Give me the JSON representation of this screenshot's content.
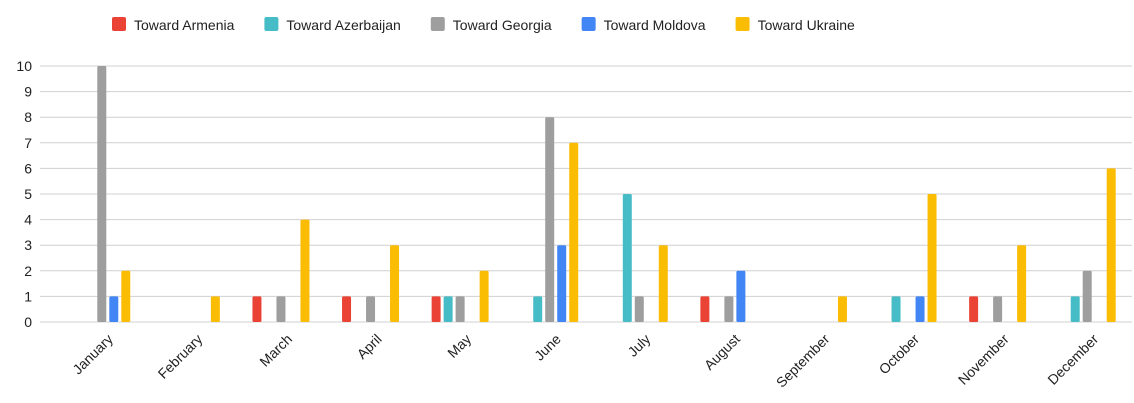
{
  "chart_data": {
    "type": "bar",
    "categories": [
      "January",
      "February",
      "March",
      "April",
      "May",
      "June",
      "July",
      "August",
      "September",
      "October",
      "November",
      "December"
    ],
    "series": [
      {
        "name": "Toward Armenia",
        "color": "#ea4335",
        "values": [
          0,
          0,
          1,
          1,
          1,
          0,
          0,
          1,
          0,
          0,
          1,
          0
        ]
      },
      {
        "name": "Toward Azerbaijan",
        "color": "#46bdc6",
        "values": [
          0,
          0,
          0,
          0,
          1,
          1,
          5,
          0,
          0,
          1,
          0,
          1
        ]
      },
      {
        "name": "Toward Georgia",
        "color": "#9e9e9e",
        "values": [
          10,
          0,
          1,
          1,
          1,
          8,
          1,
          1,
          0,
          0,
          1,
          2
        ]
      },
      {
        "name": "Toward Moldova",
        "color": "#4285f4",
        "values": [
          1,
          0,
          0,
          0,
          0,
          3,
          0,
          2,
          0,
          1,
          0,
          0
        ]
      },
      {
        "name": "Toward Ukraine",
        "color": "#fbbc04",
        "values": [
          2,
          1,
          4,
          3,
          2,
          7,
          3,
          0,
          1,
          5,
          3,
          6
        ]
      }
    ],
    "ylim": [
      0,
      10
    ],
    "yticks": [
      0,
      1,
      2,
      3,
      4,
      5,
      6,
      7,
      8,
      9,
      10
    ],
    "grid": true,
    "legend": "top"
  }
}
